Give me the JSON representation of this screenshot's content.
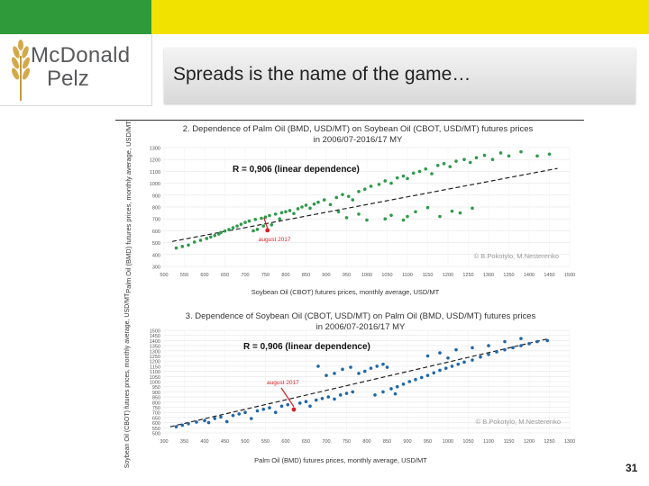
{
  "slide": {
    "title": "Spreads is the name of the game…",
    "page_number": "31",
    "colors": {
      "accent_green": "#2f9a3a",
      "accent_yellow": "#f2e200"
    }
  },
  "logo": {
    "line1": "McDonald",
    "line2": "Pelz",
    "icon": "wheat-icon"
  },
  "chart_data": [
    {
      "type": "scatter",
      "title_line1": "2. Dependence of Palm Oil (BMD, USD/MT) on Soybean Oil (CBOT, USD/MT) futures prices",
      "title_line2": "in 2006/07-2016/17 MY",
      "xlabel": "Soybean Oil (CBOT) futures prices, monthly average, USD/MT",
      "ylabel": "Palm Oil (BMD) futures prices, monthly average, USD/MT",
      "xlim": [
        500,
        1500
      ],
      "ylim": [
        300,
        1300
      ],
      "x_ticks": [
        "500",
        "550",
        "600",
        "650",
        "700",
        "750",
        "800",
        "850",
        "900",
        "950",
        "1000",
        "1050",
        "1100",
        "1150",
        "1200",
        "1250",
        "1300",
        "1350",
        "1400",
        "1450",
        "1500"
      ],
      "y_ticks": [
        "1300",
        "1200",
        "1100",
        "1000",
        "900",
        "800",
        "700",
        "600",
        "500",
        "400",
        "300"
      ],
      "r_label": "R = 0,906 (linear dependence)",
      "annotation": "august 2017",
      "annotation_point": [
        755,
        604
      ],
      "credit": "© B.Pokotylo, M.Nesterenko",
      "marker_color": "#2e9a4b",
      "trend": [
        [
          520,
          510
        ],
        [
          1470,
          1125
        ]
      ],
      "points": [
        [
          530,
          455
        ],
        [
          545,
          468
        ],
        [
          560,
          480
        ],
        [
          575,
          505
        ],
        [
          590,
          520
        ],
        [
          605,
          535
        ],
        [
          615,
          548
        ],
        [
          625,
          560
        ],
        [
          635,
          572
        ],
        [
          640,
          585
        ],
        [
          650,
          598
        ],
        [
          660,
          610
        ],
        [
          670,
          625
        ],
        [
          680,
          640
        ],
        [
          690,
          655
        ],
        [
          700,
          670
        ],
        [
          710,
          682
        ],
        [
          720,
          600
        ],
        [
          725,
          695
        ],
        [
          730,
          612
        ],
        [
          740,
          705
        ],
        [
          745,
          640
        ],
        [
          750,
          715
        ],
        [
          760,
          728
        ],
        [
          765,
          650
        ],
        [
          775,
          740
        ],
        [
          785,
          700
        ],
        [
          790,
          752
        ],
        [
          800,
          760
        ],
        [
          810,
          770
        ],
        [
          820,
          745
        ],
        [
          830,
          785
        ],
        [
          840,
          800
        ],
        [
          850,
          815
        ],
        [
          860,
          790
        ],
        [
          870,
          825
        ],
        [
          880,
          840
        ],
        [
          895,
          860
        ],
        [
          910,
          820
        ],
        [
          925,
          880
        ],
        [
          940,
          905
        ],
        [
          955,
          890
        ],
        [
          965,
          860
        ],
        [
          980,
          930
        ],
        [
          995,
          950
        ],
        [
          1010,
          975
        ],
        [
          1030,
          990
        ],
        [
          1045,
          1020
        ],
        [
          1060,
          1000
        ],
        [
          1075,
          1045
        ],
        [
          1090,
          1060
        ],
        [
          1100,
          1040
        ],
        [
          1115,
          1085
        ],
        [
          1130,
          1100
        ],
        [
          1145,
          1120
        ],
        [
          1160,
          1080
        ],
        [
          1175,
          1150
        ],
        [
          1190,
          1165
        ],
        [
          1205,
          1140
        ],
        [
          1220,
          1185
        ],
        [
          1240,
          1200
        ],
        [
          1255,
          1175
        ],
        [
          1270,
          1215
        ],
        [
          1290,
          1235
        ],
        [
          1310,
          1200
        ],
        [
          1330,
          1255
        ],
        [
          1350,
          1230
        ],
        [
          1380,
          1265
        ],
        [
          1420,
          1230
        ],
        [
          1450,
          1245
        ],
        [
          1045,
          700
        ],
        [
          1060,
          730
        ],
        [
          1090,
          690
        ],
        [
          1120,
          760
        ],
        [
          1150,
          795
        ],
        [
          1180,
          720
        ],
        [
          1210,
          765
        ],
        [
          1230,
          750
        ],
        [
          1260,
          790
        ],
        [
          1100,
          720
        ],
        [
          1000,
          690
        ],
        [
          980,
          740
        ],
        [
          950,
          710
        ],
        [
          930,
          760
        ]
      ]
    },
    {
      "type": "scatter",
      "title_line1": "3. Dependence of Soybean Oil (CBOT, USD/MT) on Palm Oil (BMD, USD/MT) futures prices",
      "title_line2": "in 2006/07-2016/17 MY",
      "xlabel": "Palm Oil (BMD) futures prices, monthly average, USD/MT",
      "ylabel": "Soybean Oil (CBOT) futures prices, monthly average, USD/MT",
      "xlim": [
        300,
        1300
      ],
      "ylim": [
        500,
        1500
      ],
      "x_ticks": [
        "300",
        "350",
        "400",
        "450",
        "500",
        "550",
        "600",
        "650",
        "700",
        "750",
        "800",
        "850",
        "900",
        "950",
        "1000",
        "1050",
        "1100",
        "1150",
        "1200",
        "1250",
        "1300"
      ],
      "y_ticks": [
        "1500",
        "1450",
        "1400",
        "1350",
        "1300",
        "1250",
        "1200",
        "1150",
        "1100",
        "1050",
        "1000",
        "950",
        "900",
        "850",
        "800",
        "750",
        "700",
        "650",
        "600",
        "550",
        "500"
      ],
      "r_label": "R = 0,906 (linear dependence)",
      "annotation": "august 2017",
      "annotation_point": [
        620,
        728
      ],
      "credit": "© B.Pokotylo, M.Nesterenko",
      "marker_color": "#2067a8",
      "trend": [
        [
          315,
          560
        ],
        [
          1250,
          1420
        ]
      ],
      "points": [
        [
          330,
          560
        ],
        [
          345,
          575
        ],
        [
          360,
          590
        ],
        [
          380,
          605
        ],
        [
          400,
          620
        ],
        [
          410,
          600
        ],
        [
          425,
          640
        ],
        [
          440,
          655
        ],
        [
          455,
          610
        ],
        [
          470,
          670
        ],
        [
          485,
          685
        ],
        [
          500,
          700
        ],
        [
          515,
          640
        ],
        [
          530,
          715
        ],
        [
          545,
          730
        ],
        [
          560,
          745
        ],
        [
          575,
          700
        ],
        [
          590,
          760
        ],
        [
          605,
          775
        ],
        [
          620,
          728
        ],
        [
          635,
          790
        ],
        [
          650,
          805
        ],
        [
          660,
          760
        ],
        [
          675,
          820
        ],
        [
          690,
          835
        ],
        [
          705,
          850
        ],
        [
          720,
          830
        ],
        [
          735,
          870
        ],
        [
          750,
          885
        ],
        [
          765,
          900
        ],
        [
          780,
          1080
        ],
        [
          795,
          1100
        ],
        [
          810,
          1130
        ],
        [
          825,
          1150
        ],
        [
          840,
          1170
        ],
        [
          850,
          1140
        ],
        [
          860,
          930
        ],
        [
          875,
          950
        ],
        [
          890,
          975
        ],
        [
          905,
          1000
        ],
        [
          920,
          1020
        ],
        [
          935,
          1040
        ],
        [
          950,
          1060
        ],
        [
          965,
          1085
        ],
        [
          980,
          1110
        ],
        [
          995,
          1130
        ],
        [
          1010,
          1150
        ],
        [
          1025,
          1170
        ],
        [
          1040,
          1190
        ],
        [
          1060,
          1210
        ],
        [
          1080,
          1240
        ],
        [
          1100,
          1265
        ],
        [
          1120,
          1290
        ],
        [
          1140,
          1310
        ],
        [
          1160,
          1330
        ],
        [
          1180,
          1350
        ],
        [
          1200,
          1370
        ],
        [
          1220,
          1390
        ],
        [
          1245,
          1400
        ],
        [
          720,
          1080
        ],
        [
          740,
          1120
        ],
        [
          760,
          1140
        ],
        [
          700,
          1060
        ],
        [
          680,
          1150
        ],
        [
          950,
          1250
        ],
        [
          980,
          1280
        ],
        [
          1000,
          1230
        ],
        [
          1020,
          1310
        ],
        [
          1060,
          1330
        ],
        [
          1100,
          1350
        ],
        [
          1140,
          1390
        ],
        [
          1180,
          1420
        ],
        [
          820,
          870
        ],
        [
          840,
          900
        ],
        [
          870,
          880
        ]
      ]
    }
  ]
}
